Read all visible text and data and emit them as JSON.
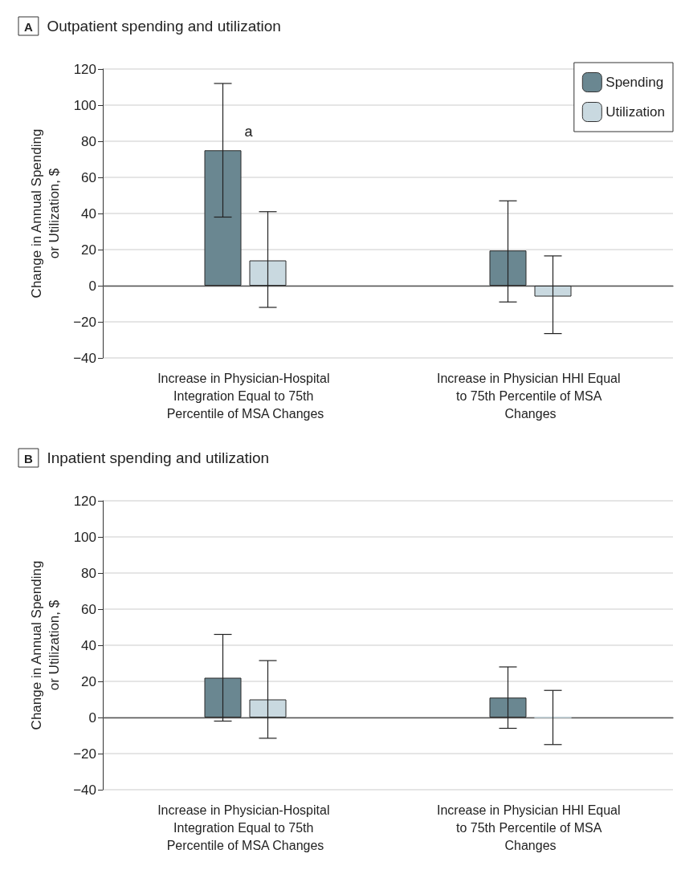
{
  "chart_data": [
    {
      "type": "bar",
      "title": "Outpatient spending and utilization",
      "ylabel": "Change in Annual Spending or Utilization, $",
      "categories": [
        "Increase in Physician-Hospital Integration Equal to 75th Percentile of MSA Changes",
        "Increase in Physician HHI Equal to 75th Percentile of MSA Changes"
      ],
      "series": [
        {
          "name": "Spending",
          "color": "#6a8791",
          "values": [
            75,
            19.5
          ],
          "errors": [
            [
              38,
              112
            ],
            [
              -9,
              47
            ]
          ]
        },
        {
          "name": "Utilization",
          "color": "#c9d9e0",
          "values": [
            14,
            -6
          ],
          "errors": [
            [
              -12,
              41
            ],
            [
              -26.5,
              16.5
            ]
          ]
        }
      ],
      "annotations": [
        "A",
        "a"
      ],
      "ylim": [
        -40,
        120
      ],
      "yticks": [
        -40,
        -20,
        0,
        20,
        40,
        60,
        80,
        100,
        120
      ],
      "grid": "y",
      "legend": "top right"
    },
    {
      "type": "bar",
      "title": "Inpatient spending and utilization",
      "ylabel": "Change in Annual Spending or Utilization, $",
      "categories": [
        "Increase in Physician-Hospital Integration Equal to 75th Percentile of MSA Changes",
        "Increase in Physician HHI Equal to 75th Percentile of MSA Changes"
      ],
      "series": [
        {
          "color": "#6a8791",
          "values": [
            22,
            11
          ],
          "errors": [
            [
              -2,
              46
            ],
            [
              -6,
              28
            ]
          ]
        },
        {
          "color": "#c9d9e0",
          "values": [
            10,
            0
          ],
          "errors": [
            [
              -11.5,
              31.5
            ],
            [
              -15,
              15
            ]
          ]
        }
      ],
      "annotations": [
        "B"
      ],
      "ylim": [
        -40,
        120
      ],
      "yticks": [
        -40,
        -20,
        0,
        20,
        40,
        60,
        80,
        100,
        120
      ],
      "grid": "y",
      "legend": false
    }
  ]
}
